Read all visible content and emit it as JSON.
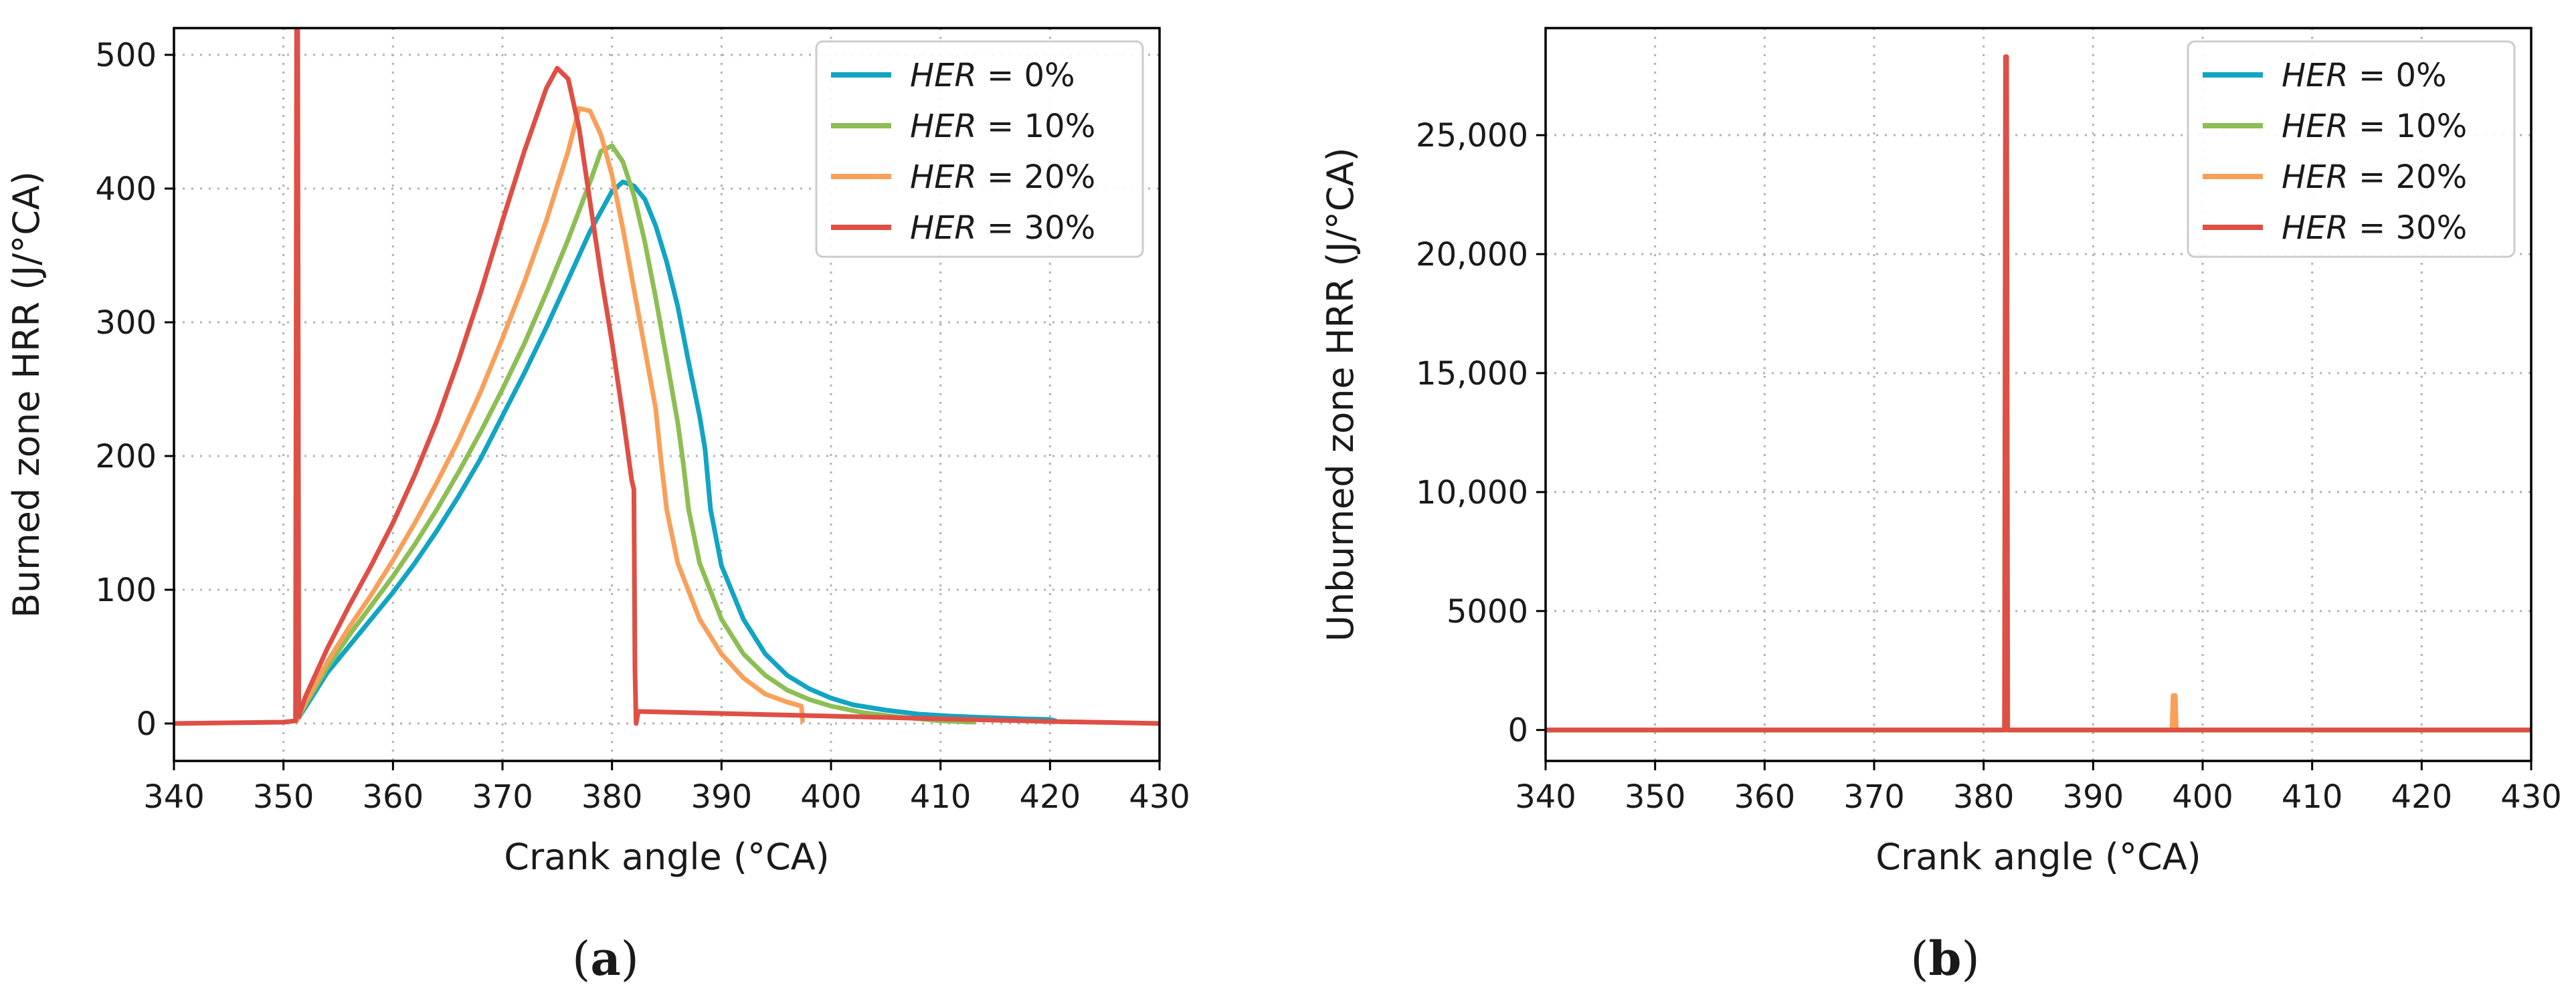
{
  "colors": {
    "her0": "#12A4C3",
    "her10": "#8DBE54",
    "her20": "#F8A05A",
    "her30": "#DE4F45"
  },
  "chart_data": [
    {
      "type": "line",
      "panel_label": "a",
      "xlabel": "Crank angle (°CA)",
      "ylabel": "Burned zone HRR (J/°CA)",
      "xlim": [
        340,
        430
      ],
      "ylim": [
        -28,
        520
      ],
      "xticks": [
        340,
        350,
        360,
        370,
        380,
        390,
        400,
        410,
        420,
        430
      ],
      "yticks": [
        0,
        100,
        200,
        300,
        400,
        500
      ],
      "ytick_labels": [
        "0",
        "100",
        "200",
        "300",
        "400",
        "500"
      ],
      "grid": true,
      "legend_position": "top-right",
      "series": [
        {
          "name": "HER = 0%",
          "legend_var": "HER",
          "legend_rest": " = 0%",
          "color_key": "her0",
          "x": [
            351.2,
            352,
            354,
            356,
            358,
            360,
            362,
            364,
            366,
            368,
            370,
            372,
            374,
            376,
            378,
            380,
            381,
            382,
            383,
            384,
            385,
            386,
            387,
            388,
            388.5,
            389,
            390,
            392,
            394,
            396,
            398,
            400,
            402,
            405,
            408,
            411,
            414,
            417,
            420,
            420.5
          ],
          "y": [
            2,
            12,
            38,
            58,
            78,
            98,
            120,
            144,
            170,
            198,
            230,
            262,
            296,
            332,
            368,
            398,
            405,
            402,
            392,
            372,
            345,
            312,
            270,
            230,
            205,
            160,
            118,
            78,
            52,
            36,
            26,
            19,
            14,
            10,
            7,
            5.5,
            4.5,
            3.6,
            3,
            2
          ]
        },
        {
          "name": "HER = 10%",
          "legend_var": "HER",
          "legend_rest": " = 10%",
          "color_key": "her10",
          "x": [
            351.2,
            352,
            354,
            356,
            358,
            360,
            362,
            364,
            366,
            368,
            370,
            372,
            374,
            376,
            378,
            379,
            380,
            381,
            382,
            383,
            384,
            385,
            386,
            386.5,
            387,
            388,
            390,
            392,
            394,
            396,
            398,
            400,
            403,
            406,
            410,
            413
          ],
          "y": [
            2,
            14,
            42,
            66,
            88,
            110,
            134,
            160,
            188,
            218,
            250,
            284,
            322,
            362,
            405,
            428,
            432,
            420,
            395,
            360,
            318,
            272,
            225,
            195,
            160,
            120,
            78,
            52,
            36,
            25,
            18,
            13,
            8,
            5,
            2,
            1
          ]
        },
        {
          "name": "HER = 20%",
          "legend_var": "HER",
          "legend_rest": " = 20%",
          "color_key": "her20",
          "x": [
            351.2,
            352,
            354,
            356,
            358,
            360,
            362,
            364,
            366,
            368,
            370,
            372,
            374,
            376,
            377,
            378,
            379,
            380,
            381,
            382,
            383,
            384,
            384.5,
            385,
            386,
            388,
            390,
            392,
            394,
            396,
            397.3,
            397.4
          ],
          "y": [
            2,
            16,
            46,
            72,
            96,
            122,
            150,
            180,
            212,
            248,
            288,
            330,
            376,
            428,
            460,
            458,
            440,
            410,
            370,
            325,
            280,
            235,
            195,
            160,
            120,
            78,
            52,
            34,
            22,
            16,
            13,
            2
          ]
        },
        {
          "name": "HER = 30%",
          "legend_var": "HER",
          "legend_rest": " = 30%",
          "color_key": "her30",
          "x": [
            340,
            345,
            350,
            351.1,
            351.2,
            351.3,
            351.4,
            351.5,
            352,
            354,
            356,
            358,
            360,
            362,
            364,
            366,
            368,
            370,
            372,
            374,
            375,
            376,
            377,
            378,
            379,
            380,
            381,
            381.8,
            382,
            382.1,
            382.2,
            382.4,
            385,
            390,
            395,
            400,
            405,
            410,
            415,
            420,
            425,
            430
          ],
          "y": [
            0,
            0.5,
            1,
            2,
            520,
            520,
            5,
            8,
            20,
            56,
            88,
            118,
            150,
            186,
            226,
            272,
            322,
            376,
            428,
            475,
            490,
            482,
            445,
            390,
            335,
            285,
            230,
            182,
            175,
            40,
            0,
            9,
            8.5,
            7.5,
            6.5,
            5.5,
            4.5,
            3.5,
            2.5,
            1.5,
            0.8,
            0
          ]
        }
      ]
    },
    {
      "type": "line",
      "panel_label": "b",
      "xlabel": "Crank angle (°CA)",
      "ylabel": "Unburned zone HRR (J/°CA)",
      "xlim": [
        340,
        430
      ],
      "ylim": [
        -1300,
        29500
      ],
      "xticks": [
        340,
        350,
        360,
        370,
        380,
        390,
        400,
        410,
        420,
        430
      ],
      "yticks": [
        0,
        5000,
        10000,
        15000,
        20000,
        25000
      ],
      "ytick_labels": [
        "0",
        "5000",
        "10,000",
        "15,000",
        "20,000",
        "25,000"
      ],
      "grid": true,
      "legend_position": "top-right",
      "series": [
        {
          "name": "HER = 0%",
          "legend_var": "HER",
          "legend_rest": " = 0%",
          "color_key": "her0",
          "x": [
            340,
            430
          ],
          "y": [
            0,
            0
          ]
        },
        {
          "name": "HER = 10%",
          "legend_var": "HER",
          "legend_rest": " = 10%",
          "color_key": "her10",
          "x": [
            340,
            430
          ],
          "y": [
            0,
            0
          ]
        },
        {
          "name": "HER = 20%",
          "legend_var": "HER",
          "legend_rest": " = 20%",
          "color_key": "her20",
          "x": [
            340,
            397.2,
            397.3,
            397.5,
            397.6,
            430
          ],
          "y": [
            0,
            0,
            1450,
            1450,
            0,
            0
          ]
        },
        {
          "name": "HER = 30%",
          "legend_var": "HER",
          "legend_rest": " = 30%",
          "color_key": "her30",
          "x": [
            340,
            381.9,
            382.0,
            382.1,
            382.2,
            430
          ],
          "y": [
            0,
            0,
            28300,
            28300,
            0,
            0
          ]
        }
      ]
    }
  ]
}
